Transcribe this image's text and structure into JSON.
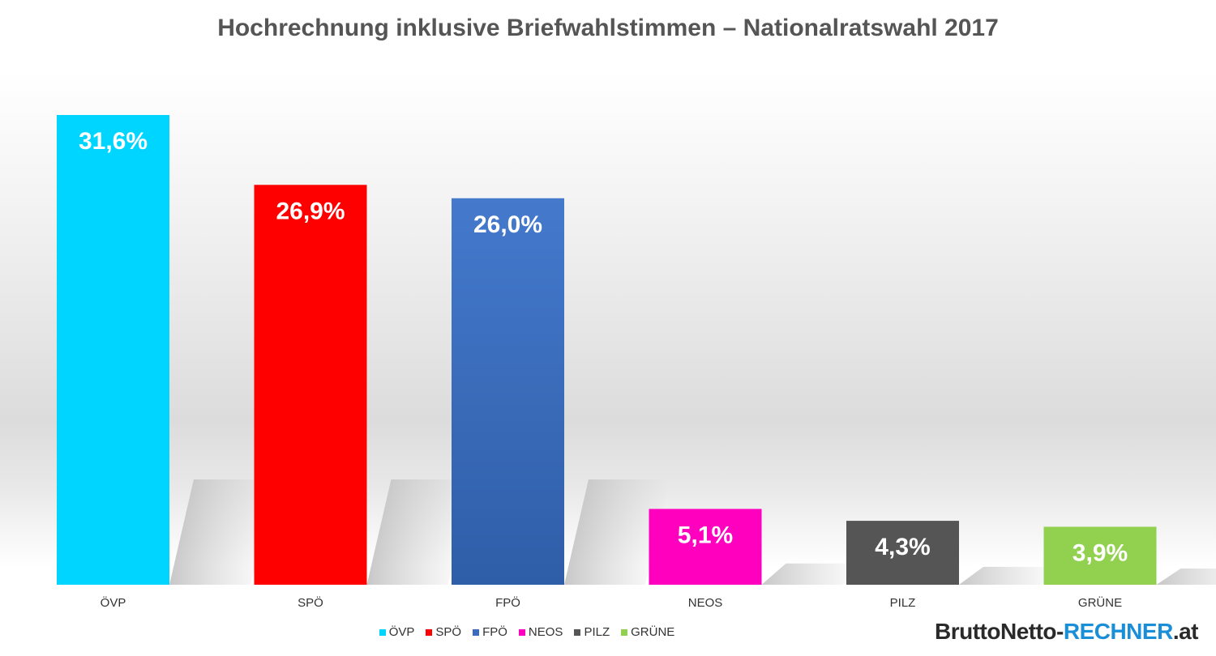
{
  "chart_data": {
    "type": "bar",
    "title": "Hochrechnung inklusive Briefwahlstimmen – Nationalratswahl 2017",
    "categories": [
      "ÖVP",
      "SPÖ",
      "FPÖ",
      "NEOS",
      "PILZ",
      "GRÜNE"
    ],
    "values": [
      31.6,
      26.9,
      26.0,
      5.1,
      4.3,
      3.9
    ],
    "value_labels": [
      "31,6%",
      "26,9%",
      "26,0%",
      "5,1%",
      "4,3%",
      "3,9%"
    ],
    "colors": [
      "#00d5ff",
      "#ff0000",
      "#3a6bbf",
      "#ff00bf",
      "#555555",
      "#92d050"
    ],
    "ylim": [
      0,
      31.6
    ],
    "grid": false,
    "legend_position": "bottom",
    "legend": [
      "ÖVP",
      "SPÖ",
      "FPÖ",
      "NEOS",
      "PILZ",
      "GRÜNE"
    ]
  },
  "brand": {
    "part1": "BruttoNetto-",
    "part2": "RECHNER",
    "part3": ".at"
  }
}
